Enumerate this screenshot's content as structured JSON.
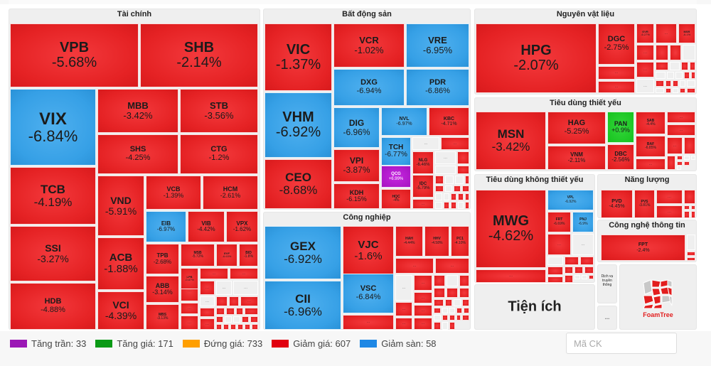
{
  "chart_data": {
    "type": "treemap",
    "title": "Market heatmap by sector",
    "color_legend": {
      "ceiling": "#9b17b5",
      "up": "#0a9a16",
      "unchanged": "#ff9f00",
      "down": "#e1000f",
      "floor": "#1e88e5"
    },
    "groups": [
      {
        "name": "Tài chính",
        "cells": [
          {
            "ticker": "VPB",
            "change": "-5.68%",
            "status": "down"
          },
          {
            "ticker": "SHB",
            "change": "-2.14%",
            "status": "down"
          },
          {
            "ticker": "VIX",
            "change": "-6.84%",
            "status": "floor"
          },
          {
            "ticker": "MBB",
            "change": "-3.42%",
            "status": "down"
          },
          {
            "ticker": "STB",
            "change": "-3.56%",
            "status": "down"
          },
          {
            "ticker": "SHS",
            "change": "-4.25%",
            "status": "down"
          },
          {
            "ticker": "CTG",
            "change": "-1.2%",
            "status": "down"
          },
          {
            "ticker": "TCB",
            "change": "-4.19%",
            "status": "down"
          },
          {
            "ticker": "VND",
            "change": "-5.91%",
            "status": "down"
          },
          {
            "ticker": "VCB",
            "change": "-1.39%",
            "status": "down"
          },
          {
            "ticker": "HCM",
            "change": "-2.61%",
            "status": "down"
          },
          {
            "ticker": "SSI",
            "change": "-3.27%",
            "status": "down"
          },
          {
            "ticker": "EIB",
            "change": "-6.97%",
            "status": "floor"
          },
          {
            "ticker": "VIB",
            "change": "-4.42%",
            "status": "down"
          },
          {
            "ticker": "VPX",
            "change": "-1.62%",
            "status": "down"
          },
          {
            "ticker": "ACB",
            "change": "-1.88%",
            "status": "down"
          },
          {
            "ticker": "TPB",
            "change": "-2.68%",
            "status": "down"
          },
          {
            "ticker": "MSB",
            "change": "-5.72%",
            "status": "down"
          },
          {
            "ticker": "EVF",
            "change": "-6.63%",
            "status": "down"
          },
          {
            "ticker": "BID",
            "change": "-1.8%",
            "status": "down"
          },
          {
            "ticker": "LPB",
            "change": "-0.87%",
            "status": "down"
          },
          {
            "ticker": "HDB",
            "change": "-4.88%",
            "status": "down"
          },
          {
            "ticker": "ABB",
            "change": "-3.14%",
            "status": "down"
          },
          {
            "ticker": "VCI",
            "change": "-4.39%",
            "status": "down"
          },
          {
            "ticker": "MBS",
            "change": "-3.13%",
            "status": "down"
          }
        ]
      },
      {
        "name": "Bất động sản",
        "cells": [
          {
            "ticker": "VIC",
            "change": "-1.37%",
            "status": "down"
          },
          {
            "ticker": "VCR",
            "change": "-1.02%",
            "status": "down"
          },
          {
            "ticker": "VRE",
            "change": "-6.95%",
            "status": "floor"
          },
          {
            "ticker": "DXG",
            "change": "-6.94%",
            "status": "floor"
          },
          {
            "ticker": "PDR",
            "change": "-6.86%",
            "status": "floor"
          },
          {
            "ticker": "VHM",
            "change": "-6.92%",
            "status": "floor"
          },
          {
            "ticker": "DIG",
            "change": "-6.96%",
            "status": "floor"
          },
          {
            "ticker": "NVL",
            "change": "-6.97%",
            "status": "floor"
          },
          {
            "ticker": "KBC",
            "change": "-4.71%",
            "status": "down"
          },
          {
            "ticker": "TCH",
            "change": "-6.77%",
            "status": "floor"
          },
          {
            "ticker": "VPI",
            "change": "-3.87%",
            "status": "down"
          },
          {
            "ticker": "NLG",
            "change": "-6.46%",
            "status": "down"
          },
          {
            "ticker": "QCG",
            "change": "+6.99%",
            "status": "ceiling"
          },
          {
            "ticker": "IDC",
            "change": "-5.79%",
            "status": "down"
          },
          {
            "ticker": "CEO",
            "change": "-8.68%",
            "status": "down"
          },
          {
            "ticker": "KDH",
            "change": "-6.15%",
            "status": "down"
          },
          {
            "ticker": "HQC",
            "change": "-4%",
            "status": "down"
          }
        ]
      },
      {
        "name": "Công nghiệp",
        "cells": [
          {
            "ticker": "GEX",
            "change": "-6.92%",
            "status": "floor"
          },
          {
            "ticker": "VJC",
            "change": "-1.6%",
            "status": "down"
          },
          {
            "ticker": "HAH",
            "change": "-4.44%",
            "status": "down"
          },
          {
            "ticker": "HHV",
            "change": "-4.58%",
            "status": "down"
          },
          {
            "ticker": "PC1",
            "change": "-4.10%",
            "status": "down"
          },
          {
            "ticker": "CII",
            "change": "-6.96%",
            "status": "floor"
          },
          {
            "ticker": "VSC",
            "change": "-6.84%",
            "status": "floor"
          }
        ]
      },
      {
        "name": "Nguyên vật liệu",
        "cells": [
          {
            "ticker": "HPG",
            "change": "-2.07%",
            "status": "down"
          },
          {
            "ticker": "DGC",
            "change": "-2.75%",
            "status": "down"
          },
          {
            "ticker": "GVR",
            "change": "-6.27%",
            "status": "down"
          },
          {
            "ticker": "MSR",
            "change": "-6.1%",
            "status": "down"
          }
        ]
      },
      {
        "name": "Tiêu dùng thiết yếu",
        "cells": [
          {
            "ticker": "MSN",
            "change": "-3.42%",
            "status": "down"
          },
          {
            "ticker": "HAG",
            "change": "-5.25%",
            "status": "down"
          },
          {
            "ticker": "PAN",
            "change": "+0.9%",
            "status": "up"
          },
          {
            "ticker": "SAB",
            "change": "-4.4%",
            "status": "down"
          },
          {
            "ticker": "VNM",
            "change": "-2.11%",
            "status": "down"
          },
          {
            "ticker": "DBC",
            "change": "-2.56%",
            "status": "down"
          },
          {
            "ticker": "BAF",
            "change": "-6.85%",
            "status": "down"
          }
        ]
      },
      {
        "name": "Tiêu dùng không thiết yếu",
        "cells": [
          {
            "ticker": "MWG",
            "change": "-4.62%",
            "status": "down"
          },
          {
            "ticker": "VPL",
            "change": "-6.92%",
            "status": "floor"
          },
          {
            "ticker": "FRT",
            "change": "-6.69%",
            "status": "down"
          },
          {
            "ticker": "PNJ",
            "change": "-6.9%",
            "status": "floor"
          }
        ]
      },
      {
        "name": "Năng lượng",
        "cells": [
          {
            "ticker": "PVD",
            "change": "-4.45%",
            "status": "down"
          },
          {
            "ticker": "PVS",
            "change": "-3.81%",
            "status": "down"
          }
        ]
      },
      {
        "name": "Công nghệ thông tin",
        "cells": [
          {
            "ticker": "FPT",
            "change": "-2.4%",
            "status": "down"
          }
        ]
      },
      {
        "name": "Tiện ích",
        "cells": []
      },
      {
        "name": "Dịch vụ truyền thông",
        "cells": []
      }
    ],
    "more_label": "..."
  },
  "legend": [
    {
      "label": "Tăng trần: 33",
      "color": "#9b17b5"
    },
    {
      "label": "Tăng giá: 171",
      "color": "#0a9a16"
    },
    {
      "label": "Đứng giá: 733",
      "color": "#ff9f00"
    },
    {
      "label": "Giảm giá: 607",
      "color": "#e1000f"
    },
    {
      "label": "Giảm sàn: 58",
      "color": "#1e88e5"
    }
  ],
  "search": {
    "placeholder": "Mã CK"
  },
  "logo": {
    "text": "FoamTree"
  }
}
